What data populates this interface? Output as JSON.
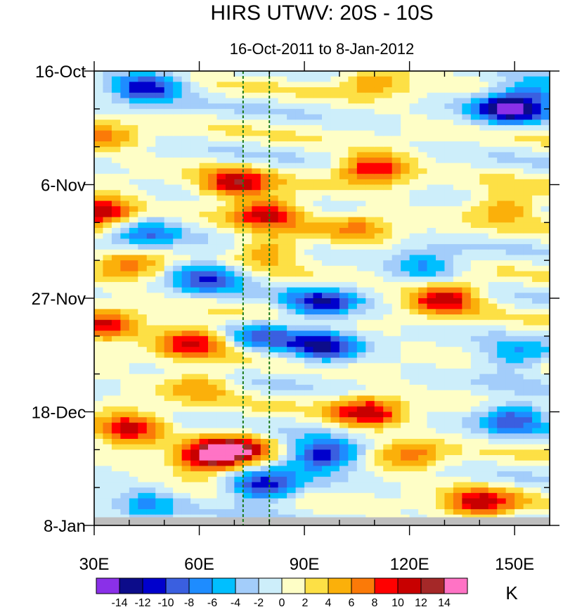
{
  "chart_data": {
    "type": "heatmap",
    "title": "HIRS UTWV: 20S - 10S",
    "subtitle": "16-Oct-2011 to 8-Jan-2012",
    "xlabel": "",
    "ylabel": "",
    "units_label": "K",
    "x_range": [
      30,
      160
    ],
    "x_ticks": [
      {
        "value": 30,
        "label": "30E"
      },
      {
        "value": 60,
        "label": "60E"
      },
      {
        "value": 90,
        "label": "90E"
      },
      {
        "value": 120,
        "label": "120E"
      },
      {
        "value": 150,
        "label": "150E"
      }
    ],
    "y_range_days": [
      0,
      84
    ],
    "y_ticks": [
      {
        "value": 0,
        "label": "16-Oct"
      },
      {
        "value": 21,
        "label": "6-Nov"
      },
      {
        "value": 42,
        "label": "27-Nov"
      },
      {
        "value": 63,
        "label": "18-Dec"
      },
      {
        "value": 84,
        "label": "8-Jan"
      }
    ],
    "missing_data_from_day": 82.5,
    "reference_lines_lon": [
      72.5,
      80
    ],
    "contour_levels": [
      -14,
      -12,
      -10,
      -8,
      -6,
      -4,
      -2,
      0,
      2,
      4,
      6,
      8,
      10,
      12,
      14
    ],
    "colorbar_labels": [
      "-14",
      "-12",
      "-10",
      "-8",
      "-6",
      "-4",
      "-2",
      "0",
      "2",
      "4",
      "6",
      "8",
      "10",
      "12",
      "14"
    ],
    "colors": [
      "#8a30e8",
      "#0c0c8a",
      "#0000cc",
      "#3a5fe0",
      "#1e8cff",
      "#00bfff",
      "#a3cdfa",
      "#cdeefa",
      "#fefec6",
      "#fde045",
      "#fbb00a",
      "#fb7a08",
      "#ff0000",
      "#c80000",
      "#a52828",
      "#ff73c5"
    ],
    "grid_resolution": {
      "lon_step_deg": 2.5,
      "time_step_days": 1
    },
    "anomaly_features": [
      {
        "lon": 45,
        "day": 3,
        "value": -12
      },
      {
        "lon": 110,
        "day": 2,
        "value": 6
      },
      {
        "lon": 148,
        "day": 7,
        "value": -13
      },
      {
        "lon": 155,
        "day": 4,
        "value": -8
      },
      {
        "lon": 33,
        "day": 12,
        "value": 6
      },
      {
        "lon": 110,
        "day": 18,
        "value": 11
      },
      {
        "lon": 70,
        "day": 21,
        "value": 11
      },
      {
        "lon": 32,
        "day": 26,
        "value": 12
      },
      {
        "lon": 80,
        "day": 26,
        "value": 11
      },
      {
        "lon": 148,
        "day": 25,
        "value": 7
      },
      {
        "lon": 45,
        "day": 30,
        "value": -8
      },
      {
        "lon": 80,
        "day": 33,
        "value": 7
      },
      {
        "lon": 105,
        "day": 29,
        "value": 6
      },
      {
        "lon": 62,
        "day": 38,
        "value": -10
      },
      {
        "lon": 125,
        "day": 36,
        "value": -7
      },
      {
        "lon": 40,
        "day": 36,
        "value": 7
      },
      {
        "lon": 130,
        "day": 42,
        "value": 12
      },
      {
        "lon": 95,
        "day": 43,
        "value": -11
      },
      {
        "lon": 33,
        "day": 47,
        "value": 10
      },
      {
        "lon": 58,
        "day": 50,
        "value": 11
      },
      {
        "lon": 95,
        "day": 51,
        "value": -12
      },
      {
        "lon": 78,
        "day": 49,
        "value": -7
      },
      {
        "lon": 60,
        "day": 58,
        "value": 6
      },
      {
        "lon": 150,
        "day": 53,
        "value": -7
      },
      {
        "lon": 108,
        "day": 63,
        "value": 11
      },
      {
        "lon": 40,
        "day": 66,
        "value": 11
      },
      {
        "lon": 70,
        "day": 70,
        "value": 12
      },
      {
        "lon": 62,
        "day": 72,
        "value": 11
      },
      {
        "lon": 95,
        "day": 71,
        "value": -13
      },
      {
        "lon": 78,
        "day": 77,
        "value": -12
      },
      {
        "lon": 150,
        "day": 64,
        "value": -10
      },
      {
        "lon": 140,
        "day": 80,
        "value": 11
      },
      {
        "lon": 120,
        "day": 71,
        "value": 7
      },
      {
        "lon": 45,
        "day": 80,
        "value": -6
      }
    ]
  }
}
